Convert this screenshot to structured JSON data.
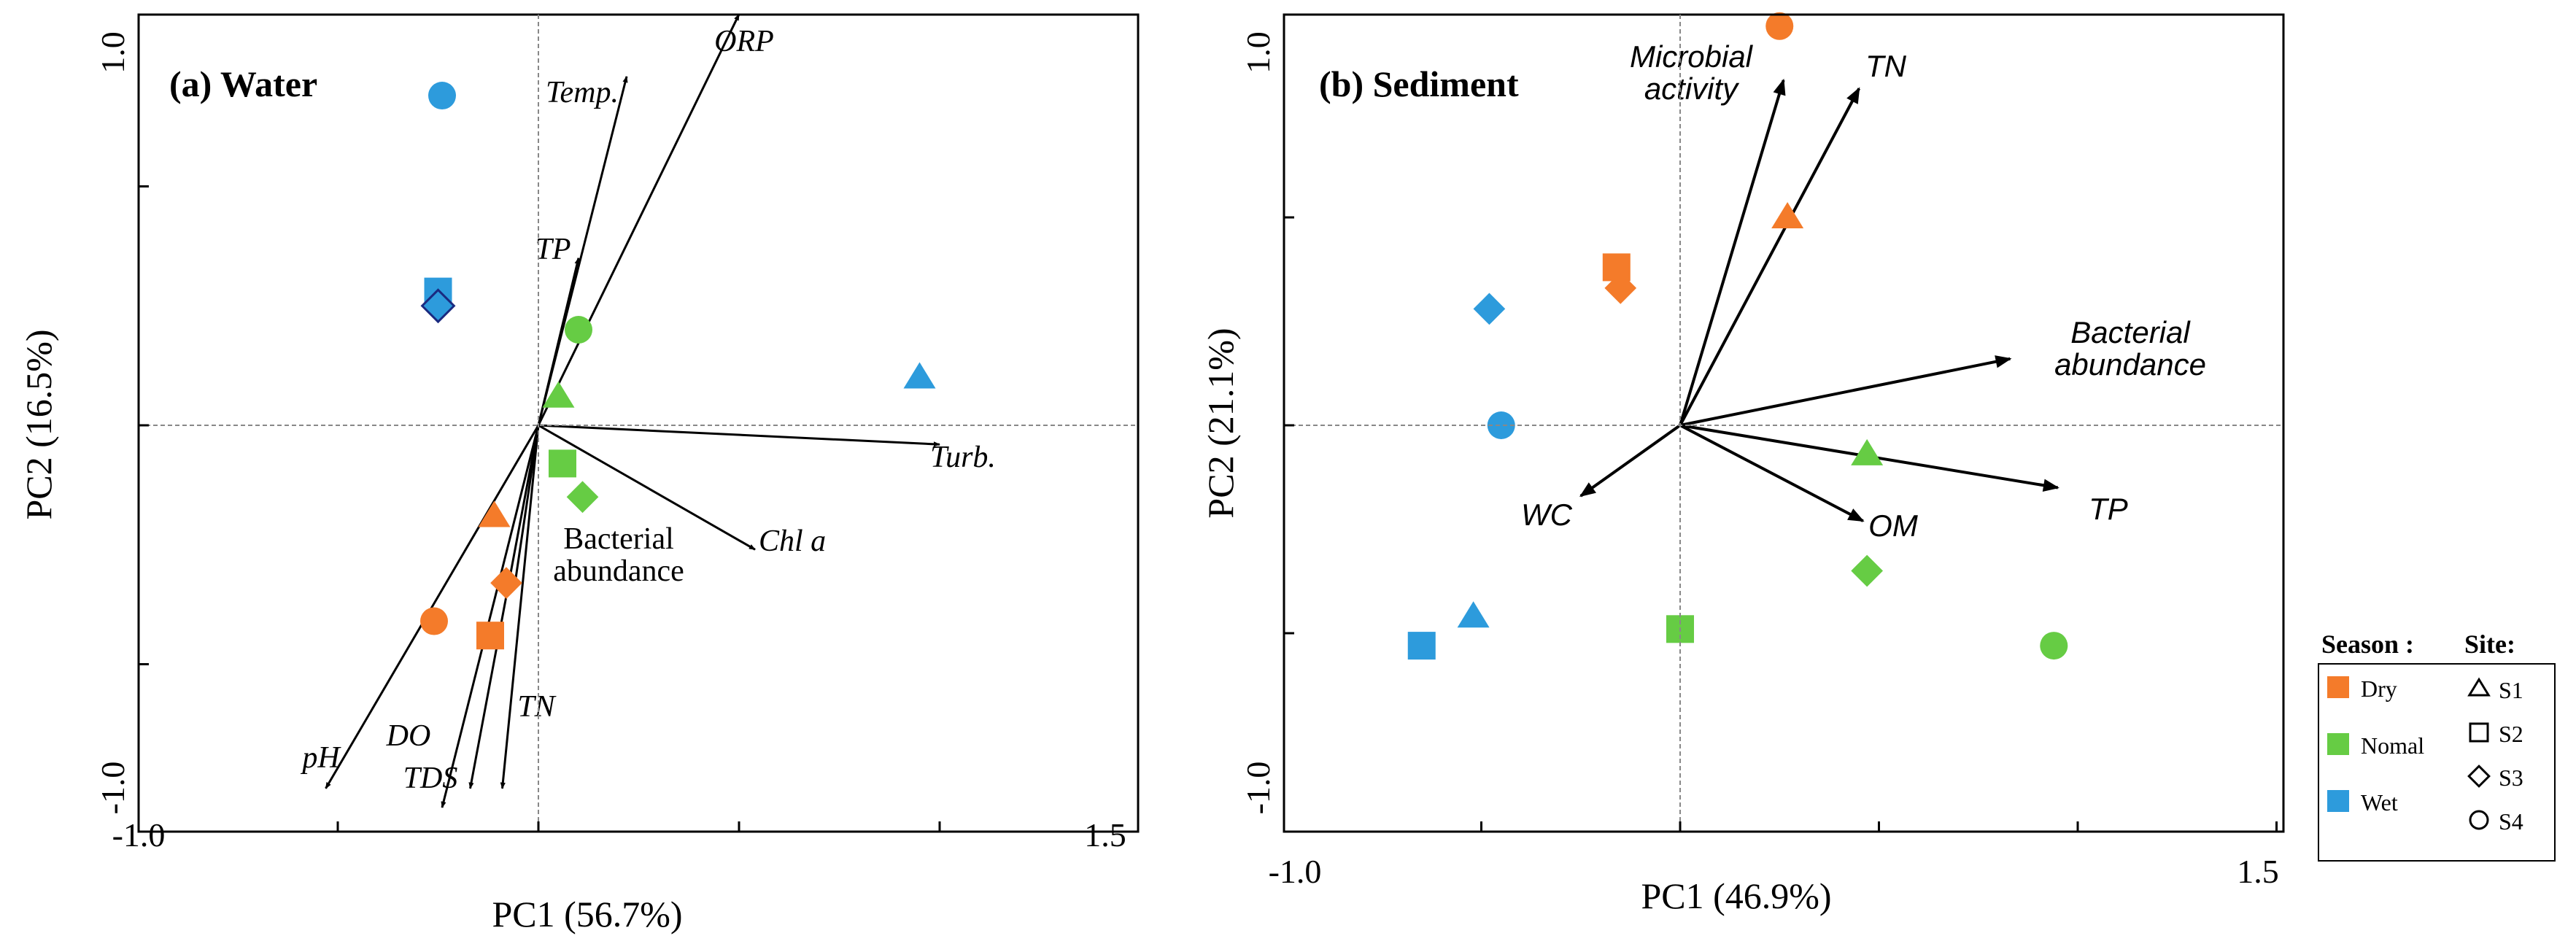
{
  "colors": {
    "dry": "#f47b2a",
    "normal": "#66cc44",
    "wet": "#2d9bdc",
    "wet_s3_edge": "#1a2a80",
    "axis": "#000000",
    "zero_line": "#888888"
  },
  "legend": {
    "season_title": "Season :",
    "site_title": "Site:",
    "seasons": [
      {
        "label": "Dry",
        "color": "#f47b2a"
      },
      {
        "label": "Nomal",
        "color": "#66cc44"
      },
      {
        "label": "Wet",
        "color": "#2d9bdc"
      }
    ],
    "sites": [
      {
        "label": "S1",
        "shape": "triangle"
      },
      {
        "label": "S2",
        "shape": "square"
      },
      {
        "label": "S3",
        "shape": "diamond"
      },
      {
        "label": "S4",
        "shape": "circle"
      }
    ]
  },
  "chart_data": [
    {
      "type": "scatter",
      "subtype": "PCA biplot",
      "title": "(a)  Water",
      "xlabel": "PC1 (56.7%)",
      "ylabel": "PC2 (16.5%)",
      "xlim": [
        -1.0,
        1.5
      ],
      "ylim": [
        -1.0,
        1.0
      ],
      "xtick_labels": [
        "-1.0",
        "1.5"
      ],
      "ytick_labels": [
        "1.0",
        "-1.0"
      ],
      "loadings": [
        {
          "label": "ORP",
          "x": 0.5,
          "y": 0.86
        },
        {
          "label": "Temp.",
          "x": 0.22,
          "y": 0.73
        },
        {
          "label": "TP",
          "x": 0.1,
          "y": 0.35
        },
        {
          "label": "Turb.",
          "x": 1.0,
          "y": -0.04
        },
        {
          "label": "Chl a",
          "x": 0.54,
          "y": -0.26
        },
        {
          "label": "Bacterial abundance",
          "x": -0.06,
          "y": -0.34
        },
        {
          "label": "pH",
          "x": -0.53,
          "y": -0.76
        },
        {
          "label": "DO",
          "x": -0.24,
          "y": -0.8
        },
        {
          "label": "TDS",
          "x": -0.17,
          "y": -0.76
        },
        {
          "label": "TN",
          "x": -0.09,
          "y": -0.76
        }
      ],
      "points": [
        {
          "season": "Wet",
          "site": "S4",
          "x": -0.24,
          "y": 0.69
        },
        {
          "season": "Wet",
          "site": "S2",
          "x": -0.25,
          "y": 0.28
        },
        {
          "season": "Wet",
          "site": "S3",
          "x": -0.25,
          "y": 0.25
        },
        {
          "season": "Wet",
          "site": "S1",
          "x": 0.95,
          "y": 0.1
        },
        {
          "season": "Nomal",
          "site": "S4",
          "x": 0.1,
          "y": 0.2
        },
        {
          "season": "Nomal",
          "site": "S1",
          "x": 0.05,
          "y": 0.06
        },
        {
          "season": "Nomal",
          "site": "S2",
          "x": 0.06,
          "y": -0.08
        },
        {
          "season": "Nomal",
          "site": "S3",
          "x": 0.11,
          "y": -0.15
        },
        {
          "season": "Dry",
          "site": "S1",
          "x": -0.11,
          "y": -0.19
        },
        {
          "season": "Dry",
          "site": "S3",
          "x": -0.08,
          "y": -0.33
        },
        {
          "season": "Dry",
          "site": "S4",
          "x": -0.26,
          "y": -0.41
        },
        {
          "season": "Dry",
          "site": "S2",
          "x": -0.12,
          "y": -0.44
        }
      ]
    },
    {
      "type": "scatter",
      "subtype": "PCA biplot",
      "title": "(b)  Sediment",
      "xlabel": "PC1 (46.9%)",
      "ylabel": "PC2 (21.1%)",
      "xlim": [
        -1.0,
        1.5
      ],
      "ylim": [
        -1.0,
        1.0
      ],
      "xtick_labels": [
        "-1.0",
        "1.5"
      ],
      "ytick_labels": [
        "1.0",
        "-1.0"
      ],
      "loadings": [
        {
          "label": "Microbial activity",
          "x": 0.26,
          "y": 0.83
        },
        {
          "label": "TN",
          "x": 0.45,
          "y": 0.81
        },
        {
          "label": "Bacterial abundance",
          "x": 0.83,
          "y": 0.16
        },
        {
          "label": "TP",
          "x": 0.95,
          "y": -0.15
        },
        {
          "label": "OM",
          "x": 0.46,
          "y": -0.23
        },
        {
          "label": "WC",
          "x": -0.25,
          "y": -0.17
        }
      ],
      "points": [
        {
          "season": "Dry",
          "site": "S4",
          "x": 0.25,
          "y": 0.96
        },
        {
          "season": "Dry",
          "site": "S1",
          "x": 0.27,
          "y": 0.5
        },
        {
          "season": "Dry",
          "site": "S2",
          "x": -0.16,
          "y": 0.38
        },
        {
          "season": "Dry",
          "site": "S3",
          "x": -0.15,
          "y": 0.33
        },
        {
          "season": "Wet",
          "site": "S3",
          "x": -0.48,
          "y": 0.28
        },
        {
          "season": "Wet",
          "site": "S4",
          "x": -0.45,
          "y": 0.0
        },
        {
          "season": "Wet",
          "site": "S1",
          "x": -0.52,
          "y": -0.46
        },
        {
          "season": "Wet",
          "site": "S2",
          "x": -0.65,
          "y": -0.53
        },
        {
          "season": "Nomal",
          "site": "S1",
          "x": 0.47,
          "y": -0.07
        },
        {
          "season": "Nomal",
          "site": "S3",
          "x": 0.47,
          "y": -0.35
        },
        {
          "season": "Nomal",
          "site": "S2",
          "x": 0.0,
          "y": -0.49
        },
        {
          "season": "Nomal",
          "site": "S4",
          "x": 0.94,
          "y": -0.53
        }
      ]
    }
  ]
}
